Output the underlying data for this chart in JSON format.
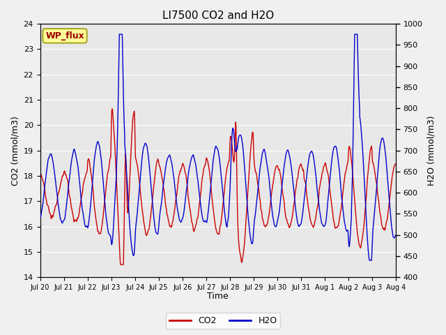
{
  "title": "LI7500 CO2 and H2O",
  "xlabel": "Time",
  "ylabel_left": "CO2 (mmol/m3)",
  "ylabel_right": "H2O (mmol/m3)",
  "annotation": "WP_flux",
  "co2_ylim": [
    14.0,
    24.0
  ],
  "h2o_ylim": [
    400,
    1000
  ],
  "co2_yticks": [
    14.0,
    15.0,
    16.0,
    17.0,
    18.0,
    19.0,
    20.0,
    21.0,
    22.0,
    23.0,
    24.0
  ],
  "h2o_yticks": [
    400,
    450,
    500,
    550,
    600,
    650,
    700,
    750,
    800,
    850,
    900,
    950,
    1000
  ],
  "xtick_labels": [
    "Jul 20",
    "Jul 21",
    "Jul 22",
    "Jul 23",
    "Jul 24",
    "Jul 25",
    "Jul 26",
    "Jul 27",
    "Jul 28",
    "Jul 29",
    "Jul 30",
    "Jul 31",
    "Aug 1",
    "Aug 2",
    "Aug 3",
    "Aug 4"
  ],
  "fig_bg_color": "#f0f0f0",
  "plot_bg_color": "#e8e8e8",
  "co2_color": "#cc0000",
  "h2o_color": "#0000cc",
  "line_width": 1.0,
  "figsize": [
    6.4,
    4.8
  ],
  "dpi": 100,
  "annotation_bg": "#ffff99",
  "annotation_border": "#999900",
  "annotation_text_color": "#990000",
  "grid_color": "#ffffff",
  "title_fontsize": 11,
  "axis_label_fontsize": 9,
  "tick_fontsize": 8,
  "xtick_fontsize": 7
}
